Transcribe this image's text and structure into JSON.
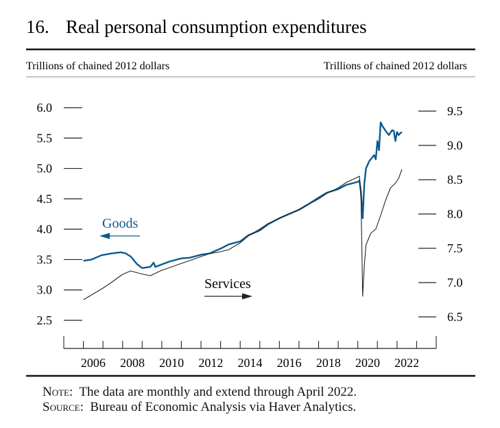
{
  "chart_data": {
    "type": "line",
    "number": "16.",
    "title": "Real personal consumption expenditures",
    "ylabel_left": "Trillions of chained 2012 dollars",
    "ylabel_right": "Trillions of chained 2012 dollars",
    "ylim_left": [
      2.5,
      6.0
    ],
    "ylim_right": [
      6.5,
      9.5
    ],
    "yticks_left": [
      "6.0",
      "5.5",
      "5.0",
      "4.5",
      "4.0",
      "3.5",
      "3.0",
      "2.5"
    ],
    "yticks_right": [
      "9.5",
      "9.0",
      "8.5",
      "8.0",
      "7.5",
      "7.0",
      "6.5"
    ],
    "xlim": [
      "2005-01",
      "2024-01"
    ],
    "xticks": [
      "2006",
      "2008",
      "2010",
      "2012",
      "2014",
      "2016",
      "2018",
      "2020",
      "2022"
    ],
    "grid": false,
    "colors": {
      "goods": "#0b5a8e",
      "services": "#222222"
    },
    "series": [
      {
        "name": "Goods",
        "axis": "left",
        "annotation": "Goods",
        "arrow": "left",
        "x": [
          "2006-01",
          "2006-06",
          "2006-12",
          "2007-06",
          "2007-12",
          "2008-03",
          "2008-06",
          "2008-10",
          "2009-01",
          "2009-06",
          "2009-08",
          "2009-09",
          "2010-01",
          "2010-06",
          "2011-01",
          "2011-06",
          "2012-01",
          "2012-06",
          "2013-01",
          "2013-06",
          "2014-01",
          "2014-06",
          "2015-01",
          "2015-06",
          "2016-01",
          "2016-06",
          "2017-01",
          "2017-06",
          "2018-01",
          "2018-06",
          "2019-01",
          "2019-06",
          "2020-01",
          "2020-02",
          "2020-03",
          "2020-04",
          "2020-05",
          "2020-06",
          "2020-08",
          "2020-11",
          "2020-12",
          "2021-01",
          "2021-02",
          "2021-03",
          "2021-04",
          "2021-06",
          "2021-08",
          "2021-10",
          "2021-11",
          "2021-12",
          "2022-01",
          "2022-02",
          "2022-03",
          "2022-04"
        ],
        "values": [
          3.48,
          3.5,
          3.57,
          3.6,
          3.62,
          3.6,
          3.55,
          3.42,
          3.36,
          3.38,
          3.45,
          3.38,
          3.42,
          3.47,
          3.52,
          3.53,
          3.58,
          3.6,
          3.68,
          3.75,
          3.8,
          3.9,
          3.98,
          4.08,
          4.18,
          4.24,
          4.32,
          4.4,
          4.52,
          4.6,
          4.66,
          4.73,
          4.78,
          4.8,
          4.6,
          4.18,
          4.75,
          5.0,
          5.12,
          5.22,
          5.15,
          5.45,
          5.3,
          5.76,
          5.7,
          5.62,
          5.55,
          5.63,
          5.62,
          5.45,
          5.6,
          5.55,
          5.58,
          5.6
        ]
      },
      {
        "name": "Services",
        "axis": "right",
        "annotation": "Services",
        "arrow": "right",
        "x": [
          "2006-01",
          "2006-06",
          "2007-01",
          "2007-06",
          "2008-01",
          "2008-06",
          "2008-12",
          "2009-06",
          "2010-01",
          "2010-06",
          "2011-01",
          "2011-06",
          "2012-01",
          "2012-06",
          "2013-01",
          "2013-06",
          "2014-01",
          "2014-06",
          "2015-01",
          "2015-06",
          "2016-01",
          "2016-06",
          "2017-01",
          "2017-06",
          "2018-01",
          "2018-06",
          "2019-01",
          "2019-06",
          "2020-02",
          "2020-03",
          "2020-04",
          "2020-05",
          "2020-06",
          "2020-09",
          "2020-12",
          "2021-03",
          "2021-06",
          "2021-09",
          "2021-12",
          "2022-02",
          "2022-04"
        ],
        "values": [
          6.75,
          6.82,
          6.92,
          7.0,
          7.12,
          7.17,
          7.13,
          7.1,
          7.18,
          7.22,
          7.28,
          7.32,
          7.38,
          7.42,
          7.45,
          7.48,
          7.58,
          7.68,
          7.78,
          7.86,
          7.94,
          7.99,
          8.06,
          8.13,
          8.22,
          8.3,
          8.38,
          8.46,
          8.55,
          8.2,
          6.8,
          7.25,
          7.55,
          7.72,
          7.78,
          7.98,
          8.2,
          8.38,
          8.45,
          8.52,
          8.65
        ]
      }
    ]
  },
  "note": {
    "label": "Note:",
    "text": "The data are monthly and extend through April 2022."
  },
  "source": {
    "label": "Source:",
    "text": "Bureau of Economic Analysis via Haver Analytics."
  }
}
